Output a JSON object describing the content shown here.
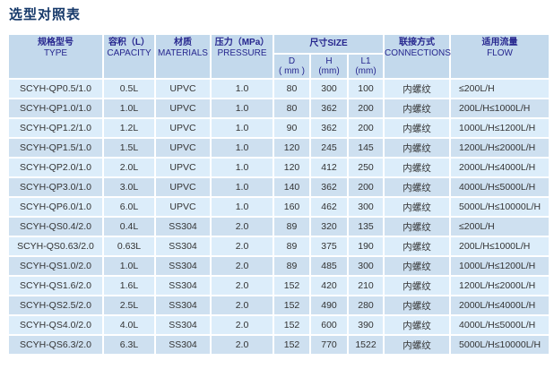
{
  "title": "选型对照表",
  "colors": {
    "title_color": "#16396a",
    "header_bg": "#c3d9ec",
    "header_text": "#26268e",
    "row_light": "#dcedfa",
    "row_dark": "#cee0f0",
    "text_color": "#333333",
    "page_bg": "#ffffff"
  },
  "table": {
    "headers": {
      "type": {
        "cn": "规格型号",
        "en": "TYPE"
      },
      "capacity": {
        "cn": "容积（L）",
        "en": "CAPACITY"
      },
      "materials": {
        "cn": "材质",
        "en": "MATERIALS"
      },
      "pressure": {
        "cn": "压力（MPa）",
        "en": "PRESSURE"
      },
      "size": {
        "cn": "尺寸SIZE"
      },
      "d": {
        "label": "D",
        "unit": "( mm )"
      },
      "h": {
        "label": "H",
        "unit": "(mm)"
      },
      "l1": {
        "label": "L1",
        "unit": "(mm)"
      },
      "connections": {
        "cn": "联接方式",
        "en": "CONNECTIONS"
      },
      "flow": {
        "cn": "适用流量",
        "en": "FLOW"
      }
    },
    "column_keys": [
      "type",
      "capacity",
      "materials",
      "pressure",
      "d",
      "h",
      "l1",
      "connections",
      "flow"
    ],
    "rows": [
      {
        "type": "SCYH-QP0.5/1.0",
        "capacity": "0.5L",
        "materials": "UPVC",
        "pressure": "1.0",
        "d": "80",
        "h": "300",
        "l1": "100",
        "connections": "内螺纹",
        "flow": "≤200L/H"
      },
      {
        "type": "SCYH-QP1.0/1.0",
        "capacity": "1.0L",
        "materials": "UPVC",
        "pressure": "1.0",
        "d": "80",
        "h": "362",
        "l1": "200",
        "connections": "内螺纹",
        "flow": "200L/H≤1000L/H"
      },
      {
        "type": "SCYH-QP1.2/1.0",
        "capacity": "1.2L",
        "materials": "UPVC",
        "pressure": "1.0",
        "d": "90",
        "h": "362",
        "l1": "200",
        "connections": "内螺纹",
        "flow": "1000L/H≤1200L/H"
      },
      {
        "type": "SCYH-QP1.5/1.0",
        "capacity": "1.5L",
        "materials": "UPVC",
        "pressure": "1.0",
        "d": "120",
        "h": "245",
        "l1": "145",
        "connections": "内螺纹",
        "flow": "1200L/H≤2000L/H"
      },
      {
        "type": "SCYH-QP2.0/1.0",
        "capacity": "2.0L",
        "materials": "UPVC",
        "pressure": "1.0",
        "d": "120",
        "h": "412",
        "l1": "250",
        "connections": "内螺纹",
        "flow": "2000L/H≤4000L/H"
      },
      {
        "type": "SCYH-QP3.0/1.0",
        "capacity": "3.0L",
        "materials": "UPVC",
        "pressure": "1.0",
        "d": "140",
        "h": "362",
        "l1": "200",
        "connections": "内螺纹",
        "flow": "4000L/H≤5000L/H"
      },
      {
        "type": "SCYH-QP6.0/1.0",
        "capacity": "6.0L",
        "materials": "UPVC",
        "pressure": "1.0",
        "d": "160",
        "h": "462",
        "l1": "300",
        "connections": "内螺纹",
        "flow": "5000L/H≤10000L/H"
      },
      {
        "type": "SCYH-QS0.4/2.0",
        "capacity": "0.4L",
        "materials": "SS304",
        "pressure": "2.0",
        "d": "89",
        "h": "320",
        "l1": "135",
        "connections": "内螺纹",
        "flow": "≤200L/H"
      },
      {
        "type": "SCYH-QS0.63/2.0",
        "capacity": "0.63L",
        "materials": "SS304",
        "pressure": "2.0",
        "d": "89",
        "h": "375",
        "l1": "190",
        "connections": "内螺纹",
        "flow": "200L/H≤1000L/H"
      },
      {
        "type": "SCYH-QS1.0/2.0",
        "capacity": "1.0L",
        "materials": "SS304",
        "pressure": "2.0",
        "d": "89",
        "h": "485",
        "l1": "300",
        "connections": "内螺纹",
        "flow": "1000L/H≤1200L/H"
      },
      {
        "type": "SCYH-QS1.6/2.0",
        "capacity": "1.6L",
        "materials": "SS304",
        "pressure": "2.0",
        "d": "152",
        "h": "420",
        "l1": "210",
        "connections": "内螺纹",
        "flow": "1200L/H≤2000L/H"
      },
      {
        "type": "SCYH-QS2.5/2.0",
        "capacity": "2.5L",
        "materials": "SS304",
        "pressure": "2.0",
        "d": "152",
        "h": "490",
        "l1": "280",
        "connections": "内螺纹",
        "flow": "2000L/H≤4000L/H"
      },
      {
        "type": "SCYH-QS4.0/2.0",
        "capacity": "4.0L",
        "materials": "SS304",
        "pressure": "2.0",
        "d": "152",
        "h": "600",
        "l1": "390",
        "connections": "内螺纹",
        "flow": "4000L/H≤5000L/H"
      },
      {
        "type": "SCYH-QS6.3/2.0",
        "capacity": "6.3L",
        "materials": "SS304",
        "pressure": "2.0",
        "d": "152",
        "h": "770",
        "l1": "1522",
        "connections": "内螺纹",
        "flow": "5000L/H≤10000L/H"
      }
    ]
  }
}
